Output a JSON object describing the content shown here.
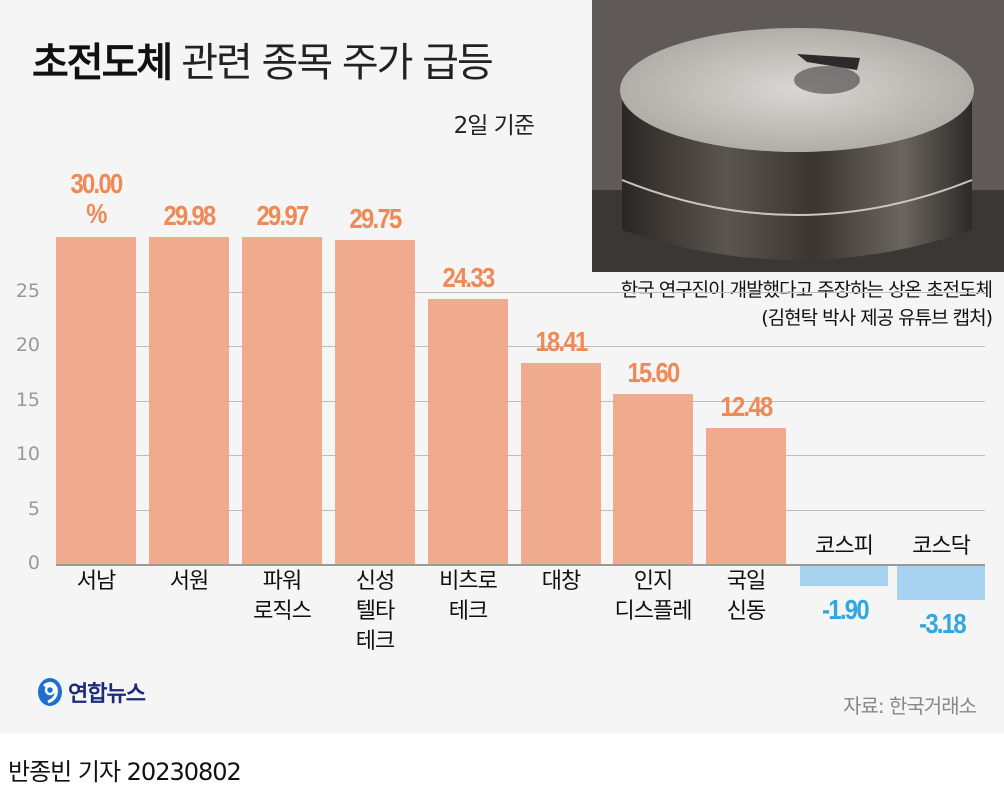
{
  "header": {
    "title_bold": "초전도체",
    "title_light": "관련 종목 주가 급등",
    "subtitle": "2일 기준"
  },
  "photo": {
    "caption_line1": "한국 연구진이 개발했다고 주장하는 상온 초전도체",
    "caption_line2": "(김현탁 박사 제공 유튜브 캡처)"
  },
  "colors": {
    "positive_bar": "#efa383",
    "positive_label": "#ef8a56",
    "negative_bar": "#a7d3f0",
    "negative_label": "#2fa8e0",
    "background": "#f5f5f5"
  },
  "chart_data": {
    "type": "bar",
    "title": "초전도체 관련 종목 주가 급등",
    "subtitle": "2일 기준",
    "xlabel": "",
    "ylabel": "",
    "unit": "%",
    "ylim": [
      0,
      30
    ],
    "yticks": [
      0,
      5,
      10,
      15,
      20,
      25
    ],
    "grid": true,
    "categories": [
      "서남",
      "서원",
      "파워로직스",
      "신성델타테크",
      "비츠로테크",
      "대창",
      "인지디스플레",
      "국일신동",
      "코스피",
      "코스닥"
    ],
    "values": [
      30.0,
      29.98,
      29.97,
      29.75,
      24.33,
      18.41,
      15.6,
      12.48,
      -1.9,
      -3.18
    ],
    "value_labels": [
      "30.00%",
      "29.98",
      "29.97",
      "29.75",
      "24.33",
      "18.41",
      "15.60",
      "12.48",
      "-1.90",
      "-3.18"
    ],
    "source": "자료: 한국거래소"
  },
  "axis": {
    "ticks": [
      "0",
      "5",
      "10",
      "15",
      "20",
      "25"
    ]
  },
  "bars": [
    {
      "name": "서남",
      "label_lines": [
        "서남"
      ],
      "value_line1": "30.00",
      "value_line2": "%"
    },
    {
      "name": "서원",
      "label_lines": [
        "서원"
      ],
      "value_line1": "29.98"
    },
    {
      "name": "파워로직스",
      "label_lines": [
        "파워",
        "로직스"
      ],
      "value_line1": "29.97"
    },
    {
      "name": "신성델타테크",
      "label_lines": [
        "신성",
        "텔타",
        "테크"
      ],
      "value_line1": "29.75"
    },
    {
      "name": "비츠로테크",
      "label_lines": [
        "비츠로",
        "테크"
      ],
      "value_line1": "24.33"
    },
    {
      "name": "대창",
      "label_lines": [
        "대창"
      ],
      "value_line1": "18.41"
    },
    {
      "name": "인지디스플레",
      "label_lines": [
        "인지",
        "디스플레"
      ],
      "value_line1": "15.60"
    },
    {
      "name": "국일신동",
      "label_lines": [
        "국일",
        "신동"
      ],
      "value_line1": "12.48"
    },
    {
      "name": "코스피",
      "label_lines": [
        "코스피"
      ],
      "value_line1": "-1.90"
    },
    {
      "name": "코스닥",
      "label_lines": [
        "코스닥"
      ],
      "value_line1": "-3.18"
    }
  ],
  "footer": {
    "logo_text": "연합뉴스",
    "source": "자료: 한국거래소",
    "byline": "반종빈 기자  20230802"
  }
}
